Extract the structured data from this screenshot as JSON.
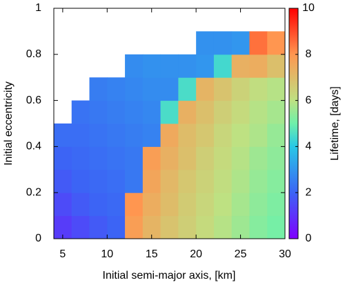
{
  "chart_data": {
    "type": "heatmap",
    "xlabel": "Initial semi-major axis, [km]",
    "ylabel": "Initial eccentricity",
    "colorbar_label": "Lifetime, [days]",
    "colormap": "rainbow",
    "x": [
      5,
      7,
      9,
      11,
      13,
      15,
      17,
      19,
      21,
      23,
      25,
      27,
      29
    ],
    "y": [
      0.05,
      0.15,
      0.25,
      0.35,
      0.45,
      0.55,
      0.65,
      0.75,
      0.85
    ],
    "values": [
      [
        1.2,
        1.5,
        1.8,
        2.0,
        7.8,
        7.2,
        6.8,
        6.5,
        6.2,
        5.9,
        5.6,
        5.3,
        5.1
      ],
      [
        1.5,
        1.8,
        2.0,
        2.1,
        8.0,
        7.4,
        7.0,
        6.6,
        6.3,
        6.0,
        5.7,
        5.4,
        5.2
      ],
      [
        1.8,
        2.0,
        2.1,
        2.2,
        2.4,
        7.6,
        7.1,
        6.7,
        6.4,
        6.1,
        5.8,
        5.5,
        5.3
      ],
      [
        2.0,
        2.1,
        2.2,
        2.3,
        2.4,
        7.8,
        7.3,
        6.9,
        6.5,
        6.2,
        5.9,
        5.6,
        5.4
      ],
      [
        2.2,
        2.2,
        2.3,
        2.4,
        2.5,
        2.6,
        7.5,
        7.0,
        6.7,
        6.3,
        6.0,
        5.8,
        5.5
      ],
      [
        null,
        2.3,
        2.4,
        2.5,
        2.6,
        2.7,
        4.5,
        7.3,
        6.9,
        6.5,
        6.2,
        5.9,
        5.7
      ],
      [
        null,
        null,
        2.5,
        2.6,
        2.7,
        2.8,
        2.8,
        4.5,
        7.2,
        6.8,
        6.4,
        6.1,
        5.9
      ],
      [
        null,
        null,
        null,
        null,
        2.8,
        2.9,
        2.9,
        2.9,
        3.0,
        4.4,
        7.3,
        7.4,
        6.9
      ],
      [
        null,
        null,
        null,
        null,
        null,
        null,
        null,
        null,
        2.9,
        2.9,
        3.0,
        8.5,
        8.0
      ]
    ],
    "xlim": [
      4,
      30
    ],
    "xticks": [
      5,
      10,
      15,
      20,
      25,
      30
    ],
    "ylim": [
      0,
      1
    ],
    "yticks": [
      0,
      0.2,
      0.4,
      0.6,
      0.8,
      1
    ],
    "clim": [
      0,
      10
    ],
    "cticks": [
      0,
      2,
      4,
      6,
      8,
      10
    ]
  }
}
